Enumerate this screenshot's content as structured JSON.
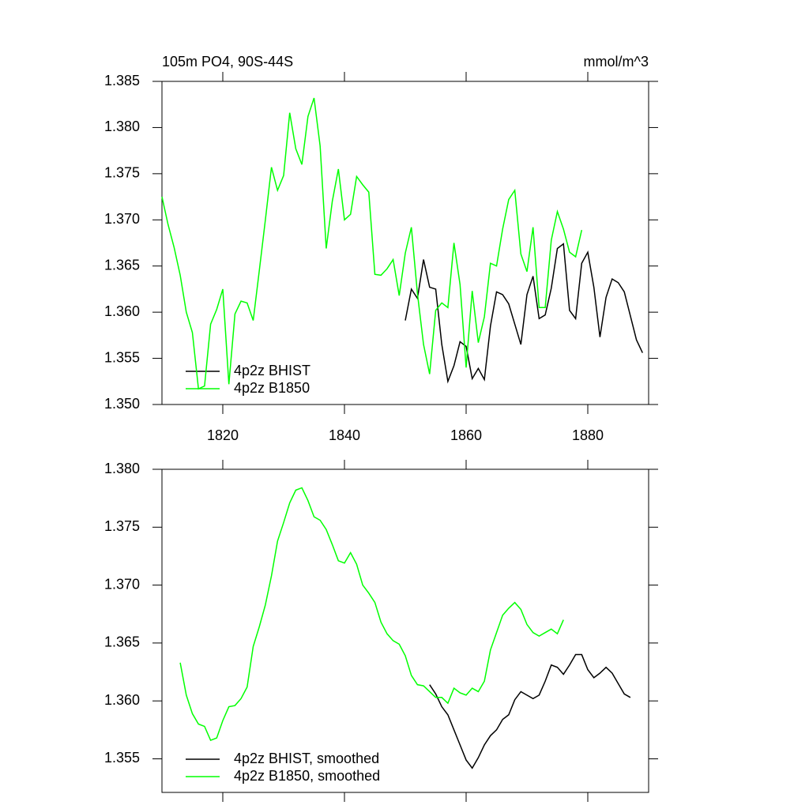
{
  "chart_data": [
    {
      "type": "line",
      "title": "105m PO4, 90S-44S",
      "units": "mmol/m^3",
      "xlim": [
        1810,
        1890
      ],
      "xticks": [
        1820,
        1840,
        1860,
        1880
      ],
      "xtick_labels": true,
      "ylim": [
        1.35,
        1.385
      ],
      "yticks": [
        {
          "value": 1.35,
          "label": "1.350"
        },
        1.355,
        {
          "value": 1.36,
          "label": "1.360"
        },
        1.365,
        {
          "value": 1.37,
          "label": "1.370"
        },
        1.375,
        {
          "value": 1.38,
          "label": "1.380"
        },
        1.385
      ],
      "series": [
        {
          "name": "4p2z BHIST",
          "color": "#000000",
          "x": [
            1850,
            1851,
            1852,
            1853,
            1854,
            1855,
            1856,
            1857,
            1858,
            1859,
            1860,
            1861,
            1862,
            1863,
            1864,
            1865,
            1866,
            1867,
            1868,
            1869,
            1870,
            1871,
            1872,
            1873,
            1874,
            1875,
            1876,
            1877,
            1878,
            1879,
            1880,
            1881,
            1882,
            1883,
            1884,
            1885,
            1886,
            1887,
            1888,
            1889
          ],
          "values": [
            1.3591,
            1.3625,
            1.3615,
            1.3657,
            1.3627,
            1.3625,
            1.3565,
            1.3525,
            1.3542,
            1.3568,
            1.3563,
            1.3528,
            1.3539,
            1.3527,
            1.3585,
            1.3622,
            1.3619,
            1.3609,
            1.3587,
            1.3565,
            1.3619,
            1.3639,
            1.3593,
            1.3597,
            1.3626,
            1.3669,
            1.3674,
            1.3602,
            1.3593,
            1.3653,
            1.3665,
            1.3627,
            1.3573,
            1.3616,
            1.3636,
            1.3632,
            1.3622,
            1.3596,
            1.357,
            1.3556
          ]
        },
        {
          "name": "4p2z B1850",
          "color": "#00ff00",
          "x": [
            1810,
            1811,
            1812,
            1813,
            1814,
            1815,
            1816,
            1817,
            1818,
            1819,
            1820,
            1821,
            1822,
            1823,
            1824,
            1825,
            1826,
            1827,
            1828,
            1829,
            1830,
            1831,
            1832,
            1833,
            1834,
            1835,
            1836,
            1837,
            1838,
            1839,
            1840,
            1841,
            1842,
            1843,
            1844,
            1845,
            1846,
            1847,
            1848,
            1849,
            1850,
            1851,
            1852,
            1853,
            1854,
            1855,
            1856,
            1857,
            1858,
            1859,
            1860,
            1861,
            1862,
            1863,
            1864,
            1865,
            1866,
            1867,
            1868,
            1869,
            1870,
            1871,
            1872,
            1873,
            1874,
            1875,
            1876,
            1877,
            1878,
            1879
          ],
          "values": [
            1.3725,
            1.3695,
            1.367,
            1.364,
            1.36,
            1.3578,
            1.3517,
            1.352,
            1.3587,
            1.3603,
            1.3625,
            1.3522,
            1.3598,
            1.3612,
            1.361,
            1.3591,
            1.3645,
            1.37,
            1.3757,
            1.3732,
            1.3748,
            1.3816,
            1.3777,
            1.376,
            1.3812,
            1.3832,
            1.378,
            1.3669,
            1.372,
            1.3755,
            1.37,
            1.3706,
            1.3747,
            1.3738,
            1.373,
            1.3641,
            1.364,
            1.3647,
            1.3657,
            1.3618,
            1.3664,
            1.3692,
            1.362,
            1.3565,
            1.3533,
            1.3602,
            1.361,
            1.3605,
            1.3675,
            1.363,
            1.354,
            1.3623,
            1.3567,
            1.3595,
            1.3653,
            1.365,
            1.369,
            1.3722,
            1.3732,
            1.3663,
            1.3644,
            1.3692,
            1.3605,
            1.3605,
            1.3678,
            1.3709,
            1.369,
            1.3665,
            1.366,
            1.3689
          ]
        }
      ]
    },
    {
      "type": "line",
      "xlim": [
        1810,
        1890
      ],
      "xticks": [
        1820,
        1840,
        1860,
        1880
      ],
      "xtick_labels": false,
      "ylim": [
        1.3521,
        1.38
      ],
      "yticks": [
        1.355,
        {
          "value": 1.36,
          "label": "1.360"
        },
        1.365,
        {
          "value": 1.37,
          "label": "1.370"
        },
        1.375,
        {
          "value": 1.38,
          "label": "1.380"
        }
      ],
      "series": [
        {
          "name": "4p2z BHIST, smoothed",
          "color": "#000000",
          "x": [
            1854,
            1855,
            1856,
            1857,
            1858,
            1859,
            1860,
            1861,
            1862,
            1863,
            1864,
            1865,
            1866,
            1867,
            1868,
            1869,
            1870,
            1871,
            1872,
            1873,
            1874,
            1875,
            1876,
            1877,
            1878,
            1879,
            1880,
            1881,
            1882,
            1883,
            1884,
            1885,
            1886,
            1887
          ],
          "values": [
            1.3614,
            1.3606,
            1.3595,
            1.3588,
            1.3575,
            1.3562,
            1.3549,
            1.3542,
            1.3551,
            1.3562,
            1.357,
            1.3575,
            1.3584,
            1.3588,
            1.3601,
            1.3608,
            1.3605,
            1.3602,
            1.3605,
            1.3617,
            1.3631,
            1.3629,
            1.3623,
            1.3631,
            1.364,
            1.364,
            1.3627,
            1.362,
            1.3624,
            1.3629,
            1.3624,
            1.3615,
            1.3606,
            1.3603
          ]
        },
        {
          "name": "4p2z B1850, smoothed",
          "color": "#00ff00",
          "x": [
            1813,
            1814,
            1815,
            1816,
            1817,
            1818,
            1819,
            1820,
            1821,
            1822,
            1823,
            1824,
            1825,
            1826,
            1827,
            1828,
            1829,
            1830,
            1831,
            1832,
            1833,
            1834,
            1835,
            1836,
            1837,
            1838,
            1839,
            1840,
            1841,
            1842,
            1843,
            1844,
            1845,
            1846,
            1847,
            1848,
            1849,
            1850,
            1851,
            1852,
            1853,
            1854,
            1855,
            1856,
            1857,
            1858,
            1859,
            1860,
            1861,
            1862,
            1863,
            1864,
            1865,
            1866,
            1867,
            1868,
            1869,
            1870,
            1871,
            1872,
            1873,
            1874,
            1875,
            1876
          ],
          "values": [
            1.3633,
            1.3605,
            1.3589,
            1.358,
            1.3578,
            1.3566,
            1.3568,
            1.3583,
            1.3595,
            1.3596,
            1.3602,
            1.3612,
            1.3647,
            1.3664,
            1.3683,
            1.3708,
            1.3738,
            1.3754,
            1.3771,
            1.3782,
            1.3784,
            1.3773,
            1.3759,
            1.3756,
            1.3748,
            1.3735,
            1.3721,
            1.3719,
            1.3728,
            1.3718,
            1.37,
            1.3693,
            1.3685,
            1.3668,
            1.3658,
            1.3652,
            1.3649,
            1.3639,
            1.3622,
            1.3614,
            1.3613,
            1.3608,
            1.3603,
            1.3603,
            1.3598,
            1.3611,
            1.3607,
            1.3605,
            1.3611,
            1.3608,
            1.3617,
            1.3644,
            1.3659,
            1.3674,
            1.368,
            1.3685,
            1.3679,
            1.3666,
            1.3659,
            1.3656,
            1.3659,
            1.3662,
            1.3658,
            1.367
          ]
        }
      ]
    }
  ]
}
